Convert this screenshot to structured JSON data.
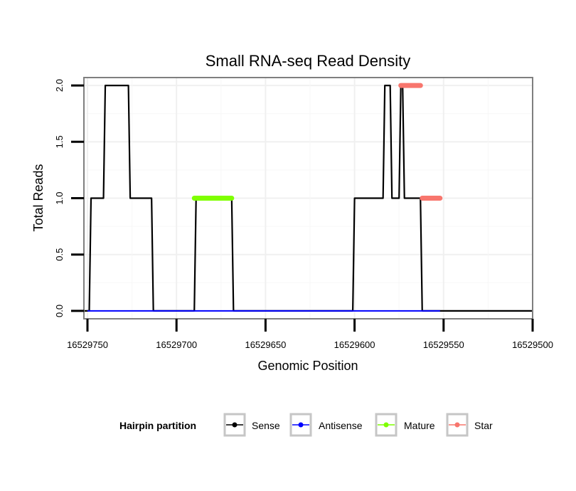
{
  "chart_data": {
    "type": "line",
    "title": "Small RNA-seq Read Density",
    "xlabel": "Genomic Position",
    "ylabel": "Total Reads",
    "xlim": [
      16529752,
      16529500
    ],
    "ylim": [
      -0.07,
      2.07
    ],
    "x_reversed": true,
    "x_ticks": [
      16529750,
      16529700,
      16529650,
      16529600,
      16529550,
      16529500
    ],
    "x_tick_labels": [
      "16529750",
      "16529700",
      "16529650",
      "16529600",
      "16529550",
      "16529500"
    ],
    "y_ticks": [
      0,
      0.5,
      1,
      1.5,
      2
    ],
    "y_tick_labels": [
      "0.0",
      "0.5",
      "1.0",
      "1.5",
      "2.0"
    ],
    "grid": true,
    "legend": {
      "title": "Hairpin partition",
      "position": "bottom",
      "entries": [
        "Sense",
        "Antisense",
        "Mature",
        "Star"
      ]
    },
    "series": [
      {
        "name": "Sense",
        "color": "#000000",
        "x": [
          16529752,
          16529749,
          16529748,
          16529741,
          16529740,
          16529727,
          16529726,
          16529714,
          16529713,
          16529690,
          16529689,
          16529669,
          16529668,
          16529601,
          16529600,
          16529584,
          16529583,
          16529580,
          16529579,
          16529575,
          16529574,
          16529573,
          16529572,
          16529563,
          16529562,
          16529553,
          16529552,
          16529500
        ],
        "values": [
          0,
          0,
          1,
          1,
          2,
          2,
          1,
          1,
          0,
          0,
          1,
          1,
          0,
          0,
          1,
          1,
          2,
          2,
          1,
          1,
          2,
          2,
          1,
          1,
          0,
          0,
          0,
          0
        ]
      },
      {
        "name": "Antisense",
        "color": "#0000ff",
        "x": [
          16529750,
          16529552
        ],
        "values": [
          0,
          0
        ]
      },
      {
        "name": "Mature",
        "color": "#7fff00",
        "x": [
          16529690,
          16529669
        ],
        "values": [
          1,
          1
        ]
      },
      {
        "name": "Star",
        "color": "#f8766d",
        "segments": [
          {
            "x": [
              16529574,
              16529563
            ],
            "values": [
              2,
              2
            ]
          },
          {
            "x": [
              16529562,
              16529552
            ],
            "values": [
              1,
              1
            ]
          }
        ]
      }
    ]
  }
}
